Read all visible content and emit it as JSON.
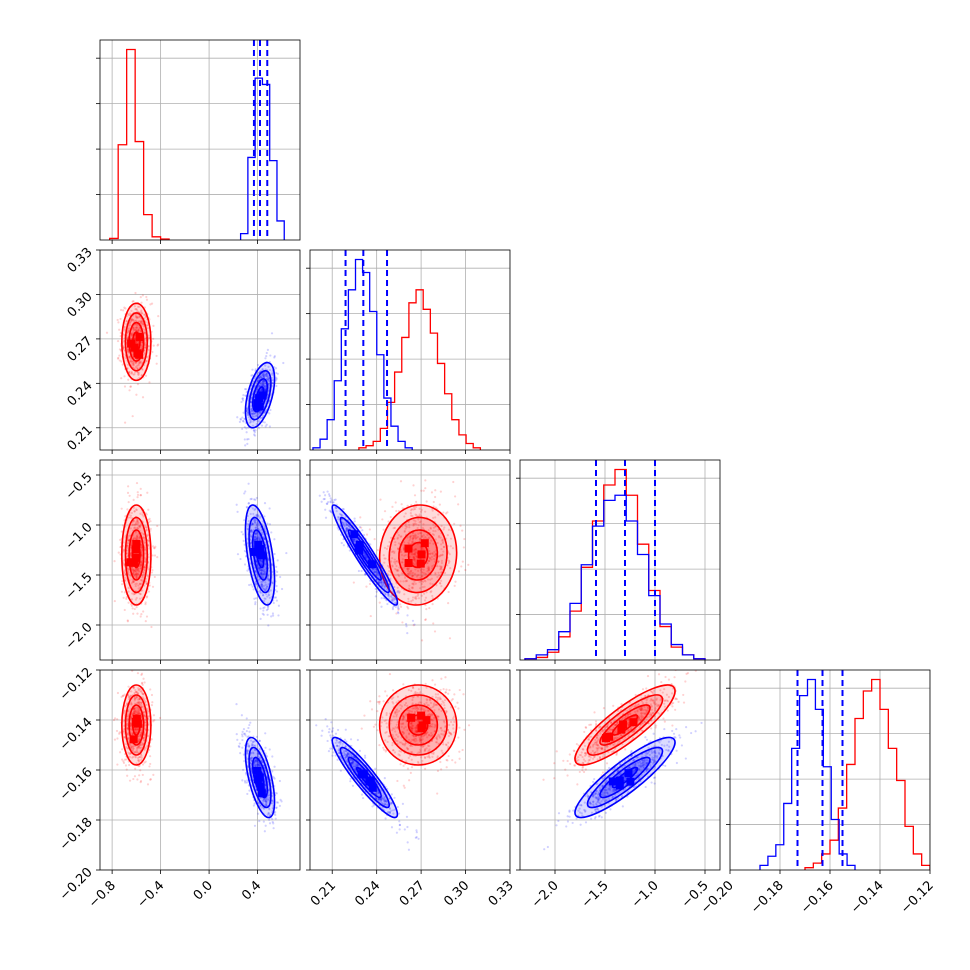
{
  "chart_data": {
    "type": "corner",
    "grid": true,
    "colors": {
      "series_a": "#ff0000",
      "series_b": "#0000ff",
      "quantile_line": "#0000ff"
    },
    "series": [
      {
        "color": "#ff0000",
        "mean": [
          -0.6,
          0.268,
          -1.3,
          -0.142
        ],
        "std": [
          0.06,
          0.013,
          0.25,
          0.008
        ],
        "corr": [
          [
            1,
            0,
            0,
            0
          ],
          [
            0,
            1,
            0.05,
            0
          ],
          [
            0,
            0.05,
            1,
            0.85
          ],
          [
            0,
            0,
            0.85,
            1
          ]
        ]
      },
      {
        "color": "#0000ff",
        "mean": [
          0.42,
          0.232,
          -1.3,
          -0.163
        ],
        "std": [
          0.06,
          0.011,
          0.25,
          0.008
        ],
        "corr": [
          [
            1,
            0.5,
            -0.5,
            -0.6
          ],
          [
            0.5,
            1,
            -0.95,
            -0.92
          ],
          [
            -0.5,
            -0.95,
            1,
            0.88
          ],
          [
            -0.6,
            -0.92,
            0.88,
            1
          ]
        ]
      }
    ],
    "parameters": [
      {
        "range": [
          -0.9,
          0.75
        ],
        "ticks": [
          -0.8,
          -0.4,
          0.0,
          0.4
        ],
        "tick_labels": [
          "−0.8",
          "−0.4",
          "0.0",
          "0.4"
        ],
        "quantiles_b": [
          0.37,
          0.42,
          0.48
        ],
        "hist_a": [
          0.5,
          30,
          60,
          31,
          8,
          1,
          0.3
        ],
        "hist_a_range": [
          -0.82,
          -0.33
        ],
        "hist_b": [
          2,
          26,
          51,
          49,
          25,
          6
        ],
        "hist_b_range": [
          0.26,
          0.62
        ]
      },
      {
        "range": [
          0.195,
          0.33
        ],
        "ticks": [
          0.21,
          0.24,
          0.27,
          0.3,
          0.33
        ],
        "tick_labels": [
          "0.21",
          "0.24",
          "0.27",
          "0.30",
          "0.33"
        ],
        "quantiles_b": [
          0.219,
          0.231,
          0.247
        ],
        "hist_a": [
          1,
          2,
          4,
          10,
          22,
          36,
          52,
          68,
          74,
          65,
          54,
          40,
          26,
          14,
          7,
          3,
          1
        ],
        "hist_a_range": [
          0.228,
          0.31
        ],
        "hist_b": [
          1,
          5,
          14,
          32,
          56,
          74,
          88,
          82,
          64,
          44,
          24,
          11,
          4,
          1
        ],
        "hist_b_range": [
          0.197,
          0.264
        ]
      },
      {
        "range": [
          -2.35,
          -0.35
        ],
        "ticks": [
          -2.0,
          -1.5,
          -1.0,
          -0.5
        ],
        "tick_labels": [
          "−2.0",
          "−1.5",
          "−1.0",
          "−0.5"
        ],
        "quantiles_b": [
          -1.59,
          -1.3,
          -1.0
        ],
        "hist_a": [
          0.5,
          1,
          3,
          9,
          19,
          36,
          54,
          68,
          74,
          64,
          45,
          27,
          13,
          5,
          2,
          0.5
        ],
        "hist_a_range": [
          -2.3,
          -0.5
        ],
        "hist_b": [
          0.5,
          2,
          4,
          11,
          22,
          37,
          52,
          62,
          64,
          54,
          41,
          25,
          14,
          6,
          2,
          0.5
        ],
        "hist_b_range": [
          -2.3,
          -0.5
        ]
      },
      {
        "range": [
          -0.2,
          -0.12
        ],
        "ticks": [
          -0.2,
          -0.18,
          -0.16,
          -0.14,
          -0.12
        ],
        "tick_labels": [
          "−0.20",
          "−0.18",
          "−0.16",
          "−0.14",
          "−0.12"
        ],
        "quantiles_b": [
          -0.173,
          -0.163,
          -0.155
        ],
        "hist_a": [
          1,
          3,
          7,
          13,
          27,
          46,
          66,
          78,
          83,
          70,
          53,
          39,
          19,
          7,
          2
        ],
        "hist_a_range": [
          -0.17,
          -0.12
        ],
        "hist_b": [
          2,
          6,
          11,
          29,
          53,
          76,
          83,
          70,
          45,
          22,
          7,
          2
        ],
        "hist_b_range": [
          -0.188,
          -0.15
        ]
      }
    ]
  }
}
